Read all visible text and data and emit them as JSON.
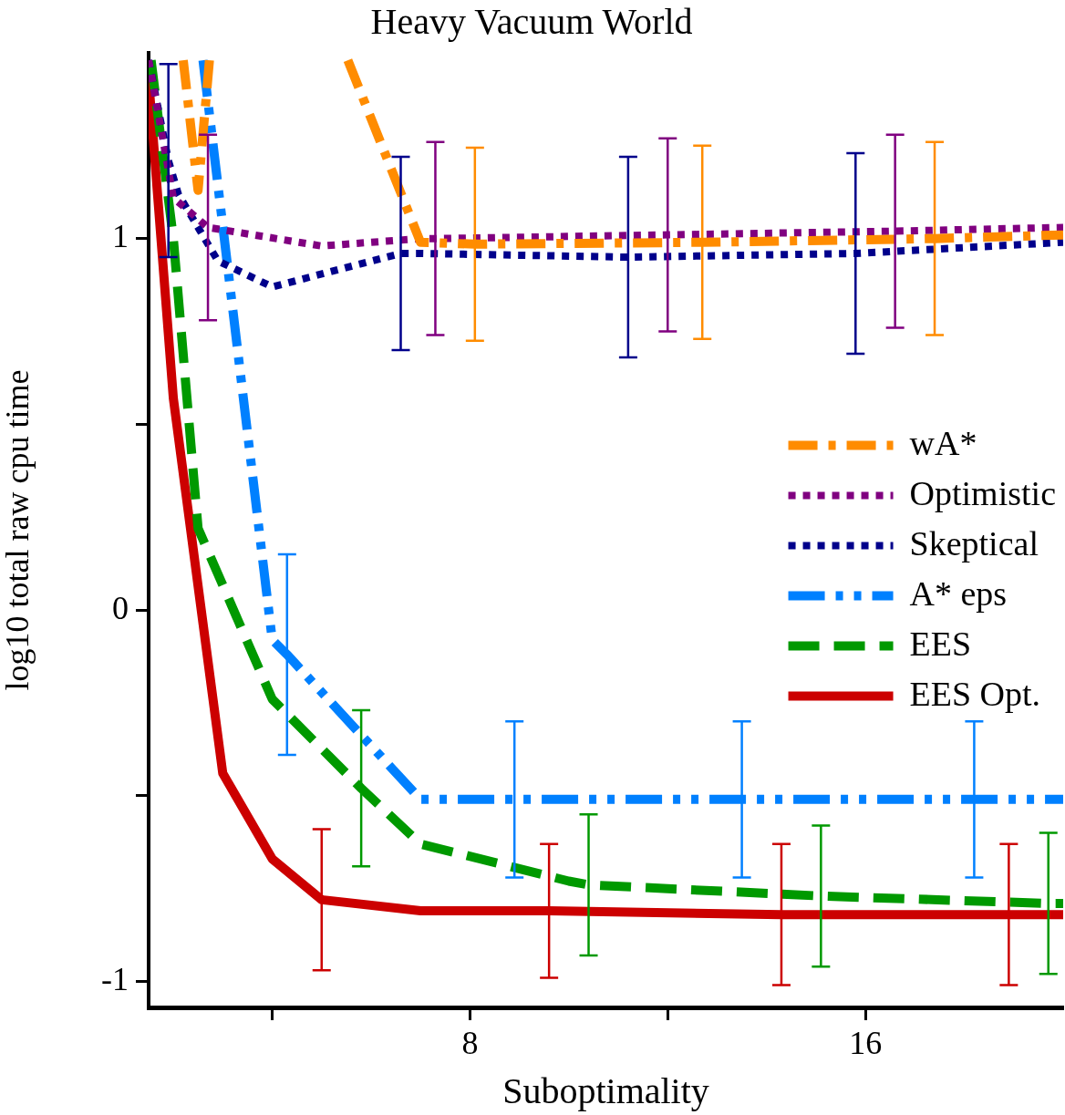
{
  "chart_data": {
    "type": "line",
    "title": "Heavy Vacuum World",
    "xlabel": "Suboptimality",
    "ylabel": "log10 total raw cpu time",
    "xlim": [
      1.5,
      20
    ],
    "xticks": [
      {
        "value": 4,
        "label": null
      },
      8,
      {
        "value": 12,
        "label": null
      },
      16
    ],
    "ylim": [
      -1.07,
      1.5
    ],
    "yticks": [
      -1,
      {
        "value": -0.5,
        "label": null
      },
      0,
      {
        "value": 0.5,
        "label": null
      },
      1
    ],
    "grid": false,
    "legend": "right",
    "series": [
      {
        "name": "wA*",
        "color": "#ff8c00",
        "line_style": "dashdot",
        "x": [
          2.2,
          2.5,
          2.73,
          4,
          5.53,
          7,
          8.1,
          12.7,
          17.4,
          20
        ],
        "values": [
          1.48,
          1.13,
          1.48,
          null,
          1.48,
          0.99,
          0.985,
          0.99,
          1.0,
          1.01
        ],
        "errors": [
          null,
          null,
          null,
          null,
          null,
          null,
          0.26,
          0.26,
          0.26,
          null
        ]
      },
      {
        "name": "Optimistic",
        "color": "#800080",
        "line_style": "dotted",
        "x": [
          1.5,
          2,
          2.7,
          5,
          7,
          7.3,
          12,
          16.6,
          20
        ],
        "values": [
          1.48,
          1.11,
          1.03,
          0.98,
          1.0,
          1.0,
          1.01,
          1.02,
          1.03
        ],
        "errors": [
          null,
          null,
          0.25,
          null,
          null,
          0.26,
          0.26,
          0.26,
          null
        ]
      },
      {
        "name": "Skeptical",
        "color": "#00008b",
        "line_style": "dotted",
        "x": [
          1.5,
          1.9,
          2.1,
          2.9,
          4,
          6.6,
          7,
          11.2,
          15.8,
          20
        ],
        "values": [
          1.48,
          1.21,
          1.12,
          0.94,
          0.87,
          0.96,
          0.96,
          0.95,
          0.96,
          0.99
        ],
        "errors": [
          null,
          0.26,
          null,
          null,
          null,
          0.26,
          null,
          0.27,
          0.27,
          null
        ]
      },
      {
        "name": "A* eps",
        "color": "#0080ff",
        "line_style": "dashdotdot",
        "x": [
          2.6,
          4,
          4.3,
          7,
          8.9,
          13.5,
          18.2,
          20
        ],
        "values": [
          1.48,
          -0.08,
          -0.12,
          -0.51,
          -0.51,
          -0.51,
          -0.51,
          -0.51
        ],
        "errors": [
          null,
          null,
          0.27,
          null,
          0.21,
          0.21,
          0.21,
          null
        ]
      },
      {
        "name": "EES",
        "color": "#009900",
        "line_style": "dashed",
        "x": [
          1.55,
          2,
          2.5,
          4,
          5.8,
          7,
          10,
          10.4,
          15.1,
          19.7,
          20
        ],
        "values": [
          1.48,
          1.0,
          0.22,
          -0.24,
          -0.48,
          -0.63,
          -0.73,
          -0.74,
          -0.77,
          -0.79,
          -0.79
        ],
        "errors": [
          null,
          null,
          null,
          null,
          0.21,
          null,
          null,
          0.19,
          0.19,
          0.19,
          null
        ]
      },
      {
        "name": "EES Opt.",
        "color": "#cc0000",
        "line_style": "solid",
        "x": [
          1.5,
          2,
          3,
          4,
          5,
          7,
          9.6,
          14.3,
          18.9,
          20
        ],
        "values": [
          1.43,
          0.57,
          -0.44,
          -0.67,
          -0.78,
          -0.81,
          -0.81,
          -0.82,
          -0.82,
          -0.82
        ],
        "errors": [
          null,
          null,
          null,
          null,
          0.19,
          null,
          0.18,
          0.19,
          0.19,
          null
        ]
      }
    ]
  }
}
